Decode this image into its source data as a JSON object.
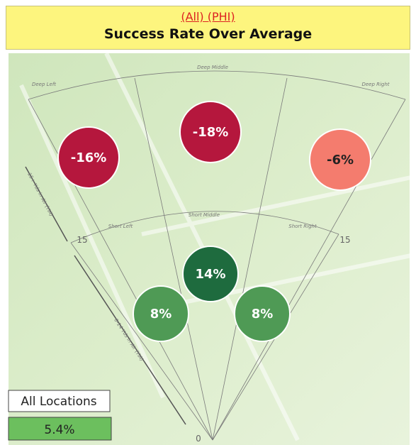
{
  "chart_data": {
    "type": "pass-map",
    "subtitle": "(All) (PHI)",
    "title": "Success Rate Over Average",
    "categories": [
      "Deep Left",
      "Deep Middle",
      "Deep Right",
      "Short Left",
      "Short Middle",
      "Short Right"
    ],
    "values": [
      -16,
      -18,
      -6,
      8,
      14,
      8
    ],
    "value_labels": [
      "-16%",
      "-18%",
      "-6%",
      "8%",
      "14%",
      "8%"
    ],
    "colors": [
      "#b5173d",
      "#b5173d",
      "#f47c6e",
      "#4f9a55",
      "#1e6b3e",
      "#4f9a55"
    ],
    "distance_labels": [
      "15",
      "15",
      "0"
    ],
    "axis_labels": [
      "15+ Yds in Air (YIA)",
      "0-14 Yds in Air (YIA)"
    ],
    "summary": {
      "label": "All Locations",
      "value": 5.4,
      "value_label": "5.4%",
      "color": "#6cbf5e"
    }
  }
}
